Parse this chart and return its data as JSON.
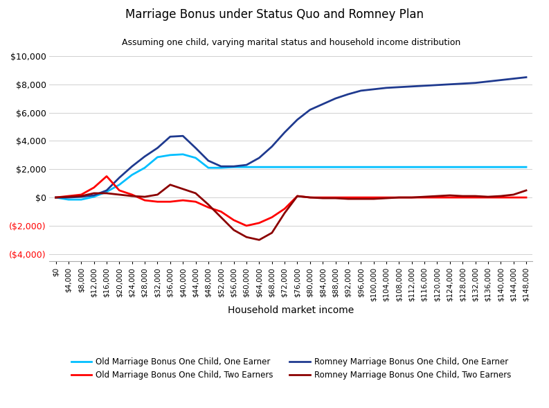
{
  "title": "Marriage Bonus under Status Quo and Romney Plan",
  "subtitle": "Assuming one child, varying marital status and household income distribution",
  "xlabel": "Household market income",
  "x_values": [
    0,
    4000,
    8000,
    12000,
    16000,
    20000,
    24000,
    28000,
    32000,
    36000,
    40000,
    44000,
    48000,
    52000,
    56000,
    60000,
    64000,
    68000,
    72000,
    76000,
    80000,
    84000,
    88000,
    92000,
    96000,
    100000,
    104000,
    108000,
    112000,
    116000,
    120000,
    124000,
    128000,
    132000,
    136000,
    140000,
    144000,
    148000
  ],
  "old_one_earner": [
    0,
    -150,
    -150,
    50,
    400,
    900,
    1600,
    2100,
    2850,
    3000,
    3050,
    2800,
    2100,
    2100,
    2150,
    2150,
    2150,
    2150,
    2150,
    2150,
    2150,
    2150,
    2150,
    2150,
    2150,
    2150,
    2150,
    2150,
    2150,
    2150,
    2150,
    2150,
    2150,
    2150,
    2150,
    2150,
    2150,
    2150
  ],
  "romney_one_earner": [
    0,
    0,
    50,
    150,
    500,
    1400,
    2200,
    2900,
    3500,
    4300,
    4350,
    3500,
    2600,
    2200,
    2200,
    2300,
    2800,
    3600,
    4600,
    5500,
    6200,
    6600,
    7000,
    7300,
    7550,
    7650,
    7750,
    7800,
    7850,
    7900,
    7950,
    8000,
    8050,
    8100,
    8200,
    8300,
    8400,
    8500
  ],
  "old_two_earner": [
    0,
    100,
    200,
    700,
    1500,
    500,
    200,
    -200,
    -300,
    -300,
    -200,
    -300,
    -700,
    -1000,
    -1600,
    -2000,
    -1800,
    -1400,
    -800,
    100,
    0,
    0,
    0,
    0,
    0,
    0,
    0,
    0,
    0,
    0,
    0,
    0,
    0,
    0,
    0,
    0,
    0,
    0
  ],
  "romney_two_earner": [
    0,
    50,
    100,
    300,
    300,
    200,
    100,
    50,
    200,
    900,
    600,
    300,
    -500,
    -1400,
    -2300,
    -2800,
    -3000,
    -2500,
    -1100,
    100,
    0,
    -50,
    -50,
    -100,
    -100,
    -100,
    -50,
    0,
    0,
    50,
    100,
    150,
    100,
    100,
    50,
    100,
    200,
    500
  ],
  "ylim": [
    -4500,
    10500
  ],
  "yticks": [
    -4000,
    -2000,
    0,
    2000,
    4000,
    6000,
    8000,
    10000
  ],
  "colors": {
    "old_one_earner": "#00BFFF",
    "romney_one_earner": "#1F3A8F",
    "old_two_earner": "#FF0000",
    "romney_two_earner": "#8B0000"
  },
  "legend": [
    "Old Marriage Bonus One Child, One Earner",
    "Romney Marriage Bonus One Child, One Earner",
    "Old Marriage Bonus One Child, Two Earners",
    "Romney Marriage Bonus One Child, Two Earners"
  ],
  "background_color": "#FFFFFF"
}
